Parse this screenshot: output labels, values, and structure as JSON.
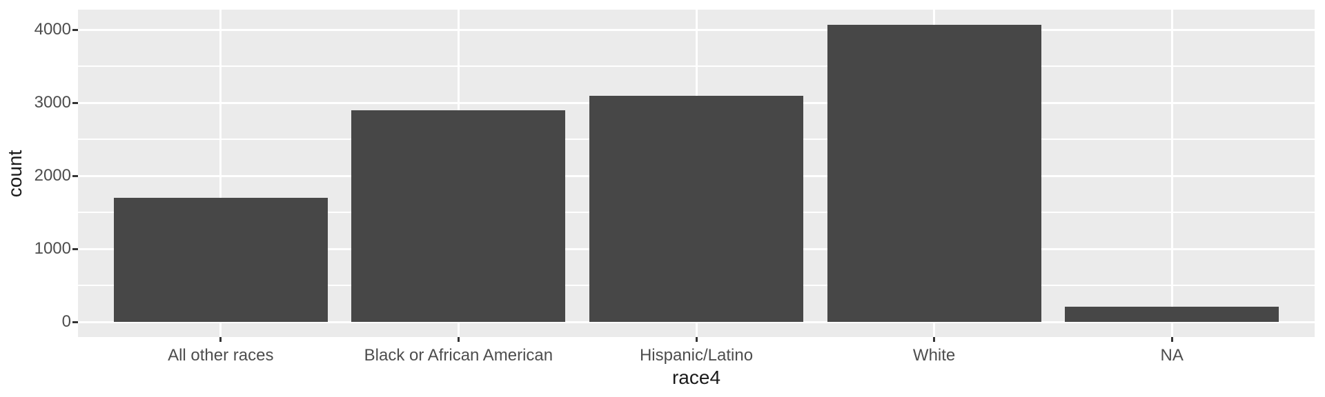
{
  "chart_data": {
    "type": "bar",
    "title": "",
    "xlabel": "race4",
    "ylabel": "count",
    "categories": [
      "All other races",
      "Black or African American",
      "Hispanic/Latino",
      "White",
      "NA"
    ],
    "values": [
      1700,
      2900,
      3100,
      4070,
      210
    ],
    "y_ticks": [
      0,
      1000,
      2000,
      3000,
      4000
    ],
    "y_minor_ticks": [
      500,
      1500,
      2500,
      3500
    ],
    "ylim": [
      -204,
      4274
    ],
    "grid": "major-and-minor-horizontal, major-vertical",
    "legend": false,
    "style": "ggplot2-theme-grey",
    "bar_width_fraction": 0.9,
    "colors": {
      "bar_fill": "#474747",
      "panel_background": "#EBEBEB",
      "gridline": "#FFFFFF",
      "tick_label": "#4D4D4D",
      "axis_title": "#1A1A1A",
      "tick_mark": "#333333",
      "page_background": "#FFFFFF"
    }
  }
}
